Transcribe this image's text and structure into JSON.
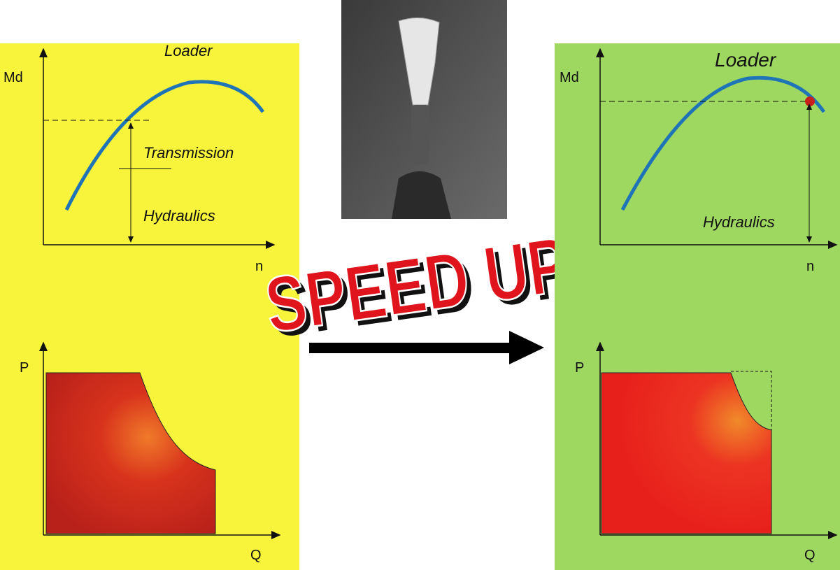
{
  "left_panel": {
    "title": "Loader",
    "torque_axis": "Md",
    "speed_axis": "n",
    "transmission_label": "Transmission",
    "hydraulics_label": "Hydraulics",
    "pressure_axis": "P",
    "flow_axis": "Q"
  },
  "center": {
    "banner": "SPEED UP"
  },
  "right_panel": {
    "title": "Loader",
    "torque_axis": "Md",
    "speed_axis": "n",
    "hydraulics_label": "Hydraulics",
    "pressure_axis": "P",
    "flow_axis": "Q"
  }
}
